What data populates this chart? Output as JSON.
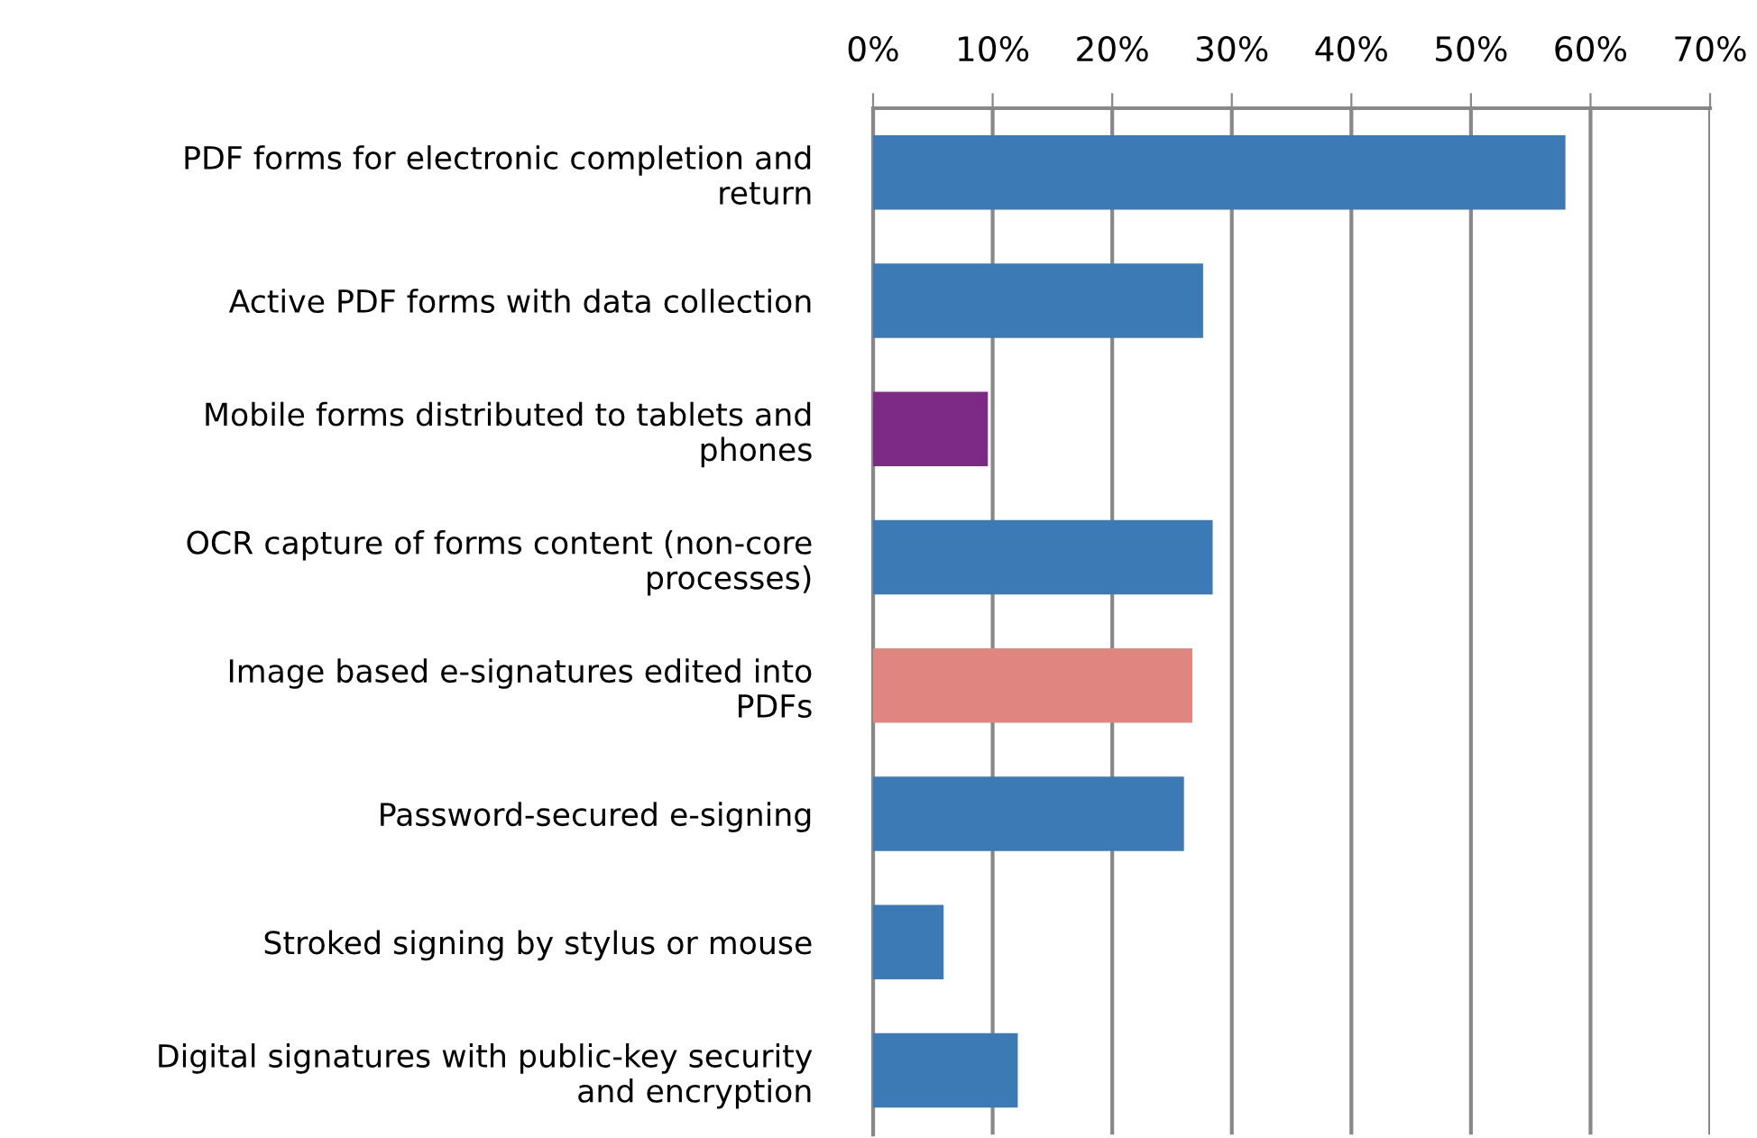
{
  "chart_data": {
    "type": "bar",
    "orientation": "horizontal",
    "categories": [
      "PDF forms for electronic completion and\nreturn",
      "Active PDF forms with data collection",
      "Mobile forms distributed to tablets and\nphones",
      "OCR capture of forms content (non-core\nprocesses)",
      "Image based e-signatures edited into\nPDFs",
      "Password-secured e-signing",
      "Stroked signing by stylus or mouse",
      "Digital signatures with public-key security\nand encryption"
    ],
    "values": [
      57.9,
      27.6,
      9.6,
      28.4,
      26.7,
      26.0,
      5.9,
      12.1
    ],
    "colors": [
      "#3b7ab5",
      "#3b7ab5",
      "#7d2a87",
      "#3b7ab5",
      "#e0857f",
      "#3b7ab5",
      "#3b7ab5",
      "#3b7ab5"
    ],
    "xlim": [
      0,
      70
    ],
    "xticks": [
      {
        "value": 0,
        "label": "0%"
      },
      {
        "value": 10,
        "label": "10%"
      },
      {
        "value": 20,
        "label": "20%"
      },
      {
        "value": 30,
        "label": "30%"
      },
      {
        "value": 40,
        "label": "40%"
      },
      {
        "value": 50,
        "label": "50%"
      },
      {
        "value": 60,
        "label": "60%"
      },
      {
        "value": 70,
        "label": "70%"
      }
    ],
    "grid": "x",
    "legend": false
  }
}
